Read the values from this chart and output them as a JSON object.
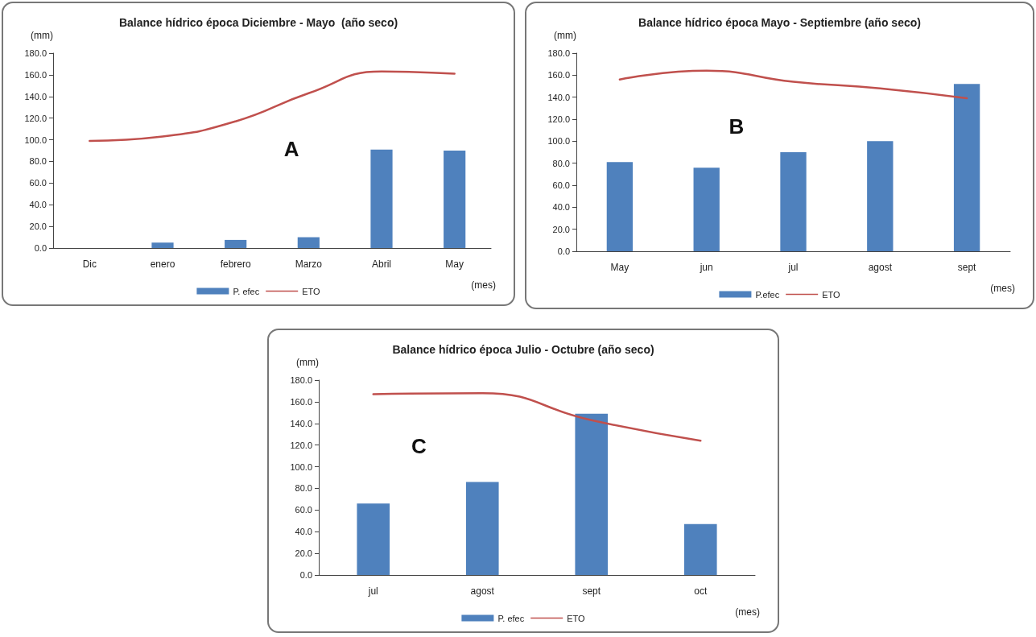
{
  "chart_data": [
    {
      "type": "bar",
      "title": "Balance hídrico época Diciembre - Mayo  (año seco)",
      "xlabel": "(mes)",
      "ylabel": "(mm)",
      "annotations": [
        "A"
      ],
      "categories": [
        "Dic",
        "enero",
        "febrero",
        "Marzo",
        "Abril",
        "May"
      ],
      "series": [
        {
          "name": "P. efec",
          "color": "#4f81bd",
          "values": [
            0,
            5,
            7.5,
            10,
            91,
            90
          ]
        },
        {
          "name": "ETO",
          "type": "line",
          "color": "#c0504d",
          "values": [
            99,
            103,
            117,
            143,
            163,
            161
          ]
        }
      ],
      "ylim": [
        0,
        180
      ],
      "yticks": [
        {
          "value": 0,
          "label": "0.0"
        },
        {
          "value": 20,
          "label": "20.0"
        },
        {
          "value": 40,
          "label": "40.0"
        },
        {
          "value": 60,
          "label": "60.0"
        },
        {
          "value": 80,
          "label": "80.0"
        },
        {
          "value": 100,
          "label": "100.0"
        },
        {
          "value": 120,
          "label": "120.0"
        },
        {
          "value": 140,
          "label": "140.0"
        },
        {
          "value": 160,
          "label": "160.0"
        },
        {
          "value": 180,
          "label": "180.0"
        }
      ],
      "grid": false,
      "legend": "bottom",
      "marker": "none",
      "line_style": "solid"
    },
    {
      "type": "bar",
      "title": "Balance hídrico época Mayo - Septiembre (año seco)",
      "xlabel": "(mes)",
      "ylabel": "(mm)",
      "annotations": [
        "B"
      ],
      "categories": [
        "May",
        "jun",
        "jul",
        "agost",
        "sept"
      ],
      "series": [
        {
          "name": "P.efec",
          "color": "#4f81bd",
          "values": [
            81,
            76,
            90,
            100,
            152
          ]
        },
        {
          "name": "ETO",
          "type": "line",
          "color": "#c0504d",
          "values": [
            156,
            164,
            154,
            148,
            139
          ]
        }
      ],
      "ylim": [
        0,
        180
      ],
      "yticks": [
        {
          "value": 0,
          "label": "0.0"
        },
        {
          "value": 20,
          "label": "20.0"
        },
        {
          "value": 40,
          "label": "40.0"
        },
        {
          "value": 60,
          "label": "60.0"
        },
        {
          "value": 80,
          "label": "80.0"
        },
        {
          "value": 100,
          "label": "100.0"
        },
        {
          "value": 120,
          "label": "120.0"
        },
        {
          "value": 140,
          "label": "140.0"
        },
        {
          "value": 160,
          "label": "160.0"
        },
        {
          "value": 180,
          "label": "180.0"
        }
      ],
      "grid": false,
      "legend": "bottom",
      "marker": "none",
      "line_style": "solid"
    },
    {
      "type": "bar",
      "title": "Balance hídrico época Julio - Octubre (año seco)",
      "xlabel": "(mes)",
      "ylabel": "(mm)",
      "annotations": [
        "C"
      ],
      "categories": [
        "jul",
        "agost",
        "sept",
        "oct"
      ],
      "series": [
        {
          "name": "P. efec",
          "color": "#4f81bd",
          "values": [
            66,
            86,
            149,
            47
          ]
        },
        {
          "name": "ETO",
          "type": "line",
          "color": "#c0504d",
          "values": [
            167,
            168,
            143,
            124
          ]
        }
      ],
      "ylim": [
        0,
        180
      ],
      "yticks": [
        {
          "value": 0,
          "label": "0.0"
        },
        {
          "value": 20,
          "label": "20.0"
        },
        {
          "value": 40,
          "label": "40.0"
        },
        {
          "value": 60,
          "label": "60.0"
        },
        {
          "value": 80,
          "label": "80.0"
        },
        {
          "value": 100,
          "label": "100.0"
        },
        {
          "value": 120,
          "label": "120.0"
        },
        {
          "value": 140,
          "label": "140.0"
        },
        {
          "value": 160,
          "label": "160.0"
        },
        {
          "value": 180,
          "label": "180.0"
        }
      ],
      "grid": false,
      "legend": "bottom",
      "marker": "none",
      "line_style": "solid"
    }
  ]
}
